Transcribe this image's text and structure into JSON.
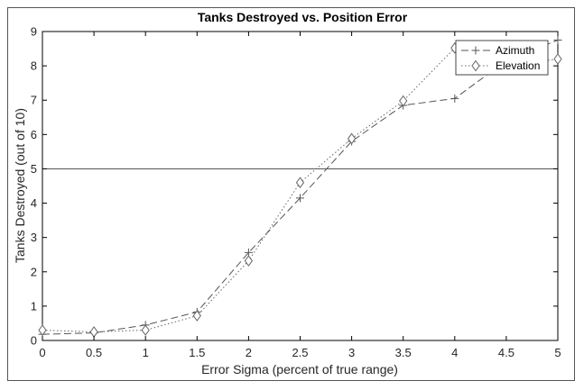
{
  "chart_data": {
    "type": "line",
    "title": "Tanks Destroyed vs. Position Error",
    "xlabel": "Error Sigma (percent of true range)",
    "ylabel": "Tanks Destroyed (out of 10)",
    "xlim": [
      0,
      5
    ],
    "ylim": [
      0,
      9
    ],
    "xticks": [
      0,
      0.5,
      1,
      1.5,
      2,
      2.5,
      3,
      3.5,
      4,
      4.5,
      5
    ],
    "xtick_labels": [
      "0",
      "0.5",
      "1",
      "1.5",
      "2",
      "2.5",
      "3",
      "3.5",
      "4",
      "4.5",
      "5"
    ],
    "yticks": [
      0,
      1,
      2,
      3,
      4,
      5,
      6,
      7,
      8,
      9
    ],
    "ytick_labels": [
      "0",
      "1",
      "2",
      "3",
      "4",
      "5",
      "6",
      "7",
      "8",
      "9"
    ],
    "grid": false,
    "legend_position": "top-right",
    "reference_line": {
      "y": 5
    },
    "x": [
      0,
      0.5,
      1,
      1.5,
      2,
      2.5,
      3,
      3.5,
      4,
      4.5,
      5
    ],
    "series": [
      {
        "name": "Azimuth",
        "marker": "plus",
        "line_style": "dashed",
        "color": "#555555",
        "values": [
          0.18,
          0.22,
          0.45,
          0.83,
          2.56,
          4.15,
          5.8,
          6.85,
          7.05,
          8.15,
          8.75
        ]
      },
      {
        "name": "Elevation",
        "marker": "diamond",
        "line_style": "dotted",
        "color": "#666666",
        "values": [
          0.3,
          0.25,
          0.3,
          0.72,
          2.32,
          4.6,
          5.88,
          6.98,
          8.52,
          8.0,
          8.2
        ]
      }
    ]
  }
}
